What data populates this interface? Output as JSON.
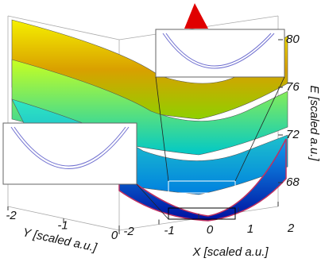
{
  "chart_data": {
    "type": "surface3d",
    "xlabel": "X [scaled a.u.]",
    "ylabel": "Y [scaled a.u.]",
    "zlabel": "E [scaled a.u.]",
    "xlim": [
      -2,
      2
    ],
    "xticks": [
      -2,
      -1,
      0,
      1,
      2
    ],
    "ylim": [
      -2,
      0
    ],
    "yticks": [
      -2,
      -1,
      0
    ],
    "zlim": [
      66,
      82
    ],
    "zticks": [
      68,
      72,
      76,
      80
    ]
  }
}
